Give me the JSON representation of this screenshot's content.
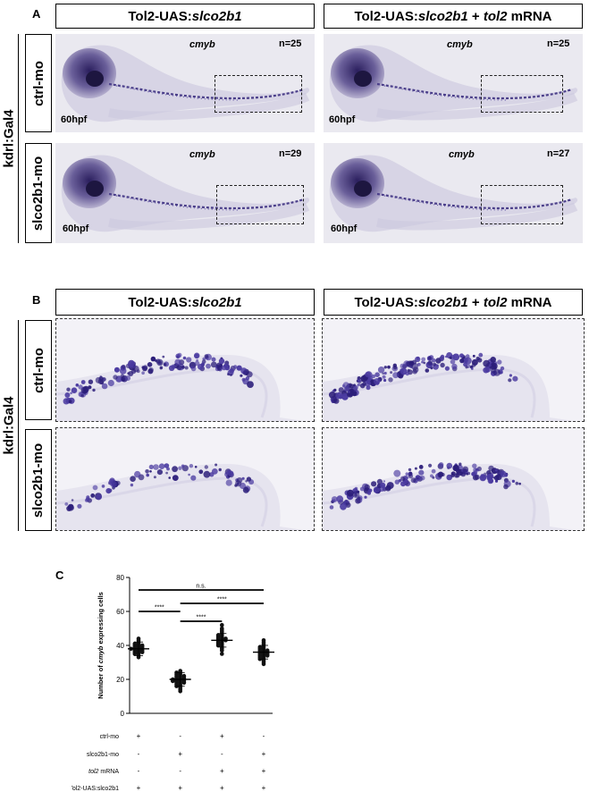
{
  "panel_a": {
    "label": "A",
    "col_headers": [
      {
        "prefix": "Tol2-UAS:",
        "italic": "slco2b1",
        "suffix": "",
        "italic2": "",
        "tail": ""
      },
      {
        "prefix": "Tol2-UAS:",
        "italic": "slco2b1",
        "suffix": " + ",
        "italic2": "tol2",
        "tail": " mRNA"
      }
    ],
    "side_label": "kdrl:Gal4",
    "rows": [
      {
        "label": "ctrl-mo",
        "cells": [
          {
            "gene": "cmyb",
            "n": "n=25",
            "stage": "60hpf"
          },
          {
            "gene": "cmyb",
            "n": "n=25",
            "stage": "60hpf"
          }
        ]
      },
      {
        "label": "slco2b1-mo",
        "cells": [
          {
            "gene": "cmyb",
            "n": "n=29",
            "stage": "60hpf"
          },
          {
            "gene": "cmyb",
            "n": "n=27",
            "stage": "60hpf"
          }
        ]
      }
    ]
  },
  "panel_b": {
    "label": "B",
    "side_label": "kdrl:Gal4",
    "rows": [
      {
        "label": "ctrl-mo"
      },
      {
        "label": "slco2b1-mo"
      }
    ]
  },
  "panel_c": {
    "label": "C"
  },
  "colors": {
    "stain": "#3a2a8a",
    "embryo": "#d9d6e6",
    "background": "#eceaf1"
  },
  "chart_data": {
    "type": "scatter",
    "ylabel_prefix": "Number of ",
    "ylabel_italic": "cmyb",
    "ylabel_suffix": " expressing cells",
    "ylim": [
      0,
      80
    ],
    "yticks": [
      0,
      20,
      40,
      60,
      80
    ],
    "groups": [
      {
        "mean": 38,
        "values": [
          34,
          35,
          36,
          36,
          37,
          37,
          38,
          38,
          39,
          39,
          40,
          40,
          41,
          42,
          43,
          44,
          35,
          37,
          38,
          39,
          36,
          41,
          33,
          40,
          38
        ]
      },
      {
        "mean": 20,
        "values": [
          13,
          15,
          16,
          17,
          18,
          18,
          19,
          19,
          20,
          20,
          21,
          21,
          22,
          22,
          23,
          24,
          25,
          14,
          17,
          20,
          22,
          19,
          21,
          23,
          18,
          16,
          20,
          24,
          19
        ]
      },
      {
        "mean": 43,
        "values": [
          35,
          37,
          38,
          39,
          40,
          41,
          42,
          42,
          43,
          43,
          44,
          44,
          45,
          46,
          47,
          48,
          49,
          50,
          52,
          40,
          43,
          45,
          41,
          46,
          44
        ]
      },
      {
        "mean": 36,
        "values": [
          29,
          30,
          31,
          32,
          33,
          34,
          34,
          35,
          35,
          36,
          36,
          37,
          37,
          38,
          39,
          40,
          41,
          42,
          43,
          32,
          35,
          36,
          38,
          33,
          37,
          39,
          34
        ]
      }
    ],
    "significance": [
      {
        "from": 0,
        "to": 3,
        "label": "n.s."
      },
      {
        "from": 0,
        "to": 1,
        "label": "****"
      },
      {
        "from": 1,
        "to": 2,
        "label": "****"
      },
      {
        "from": 1,
        "to": 3,
        "label": "****"
      }
    ],
    "conditions": [
      {
        "label": "ctrl-mo",
        "italic": "",
        "values": [
          "+",
          "-",
          "+",
          "-"
        ]
      },
      {
        "label": "slco2b1-mo",
        "italic": "",
        "values": [
          "-",
          "+",
          "-",
          "+"
        ]
      },
      {
        "label": " mRNA",
        "italic": "tol2",
        "values": [
          "-",
          "-",
          "+",
          "+"
        ]
      },
      {
        "label": "Tol2-UAS:slco2b1",
        "italic": "",
        "values": [
          "+",
          "+",
          "+",
          "+"
        ]
      }
    ]
  }
}
